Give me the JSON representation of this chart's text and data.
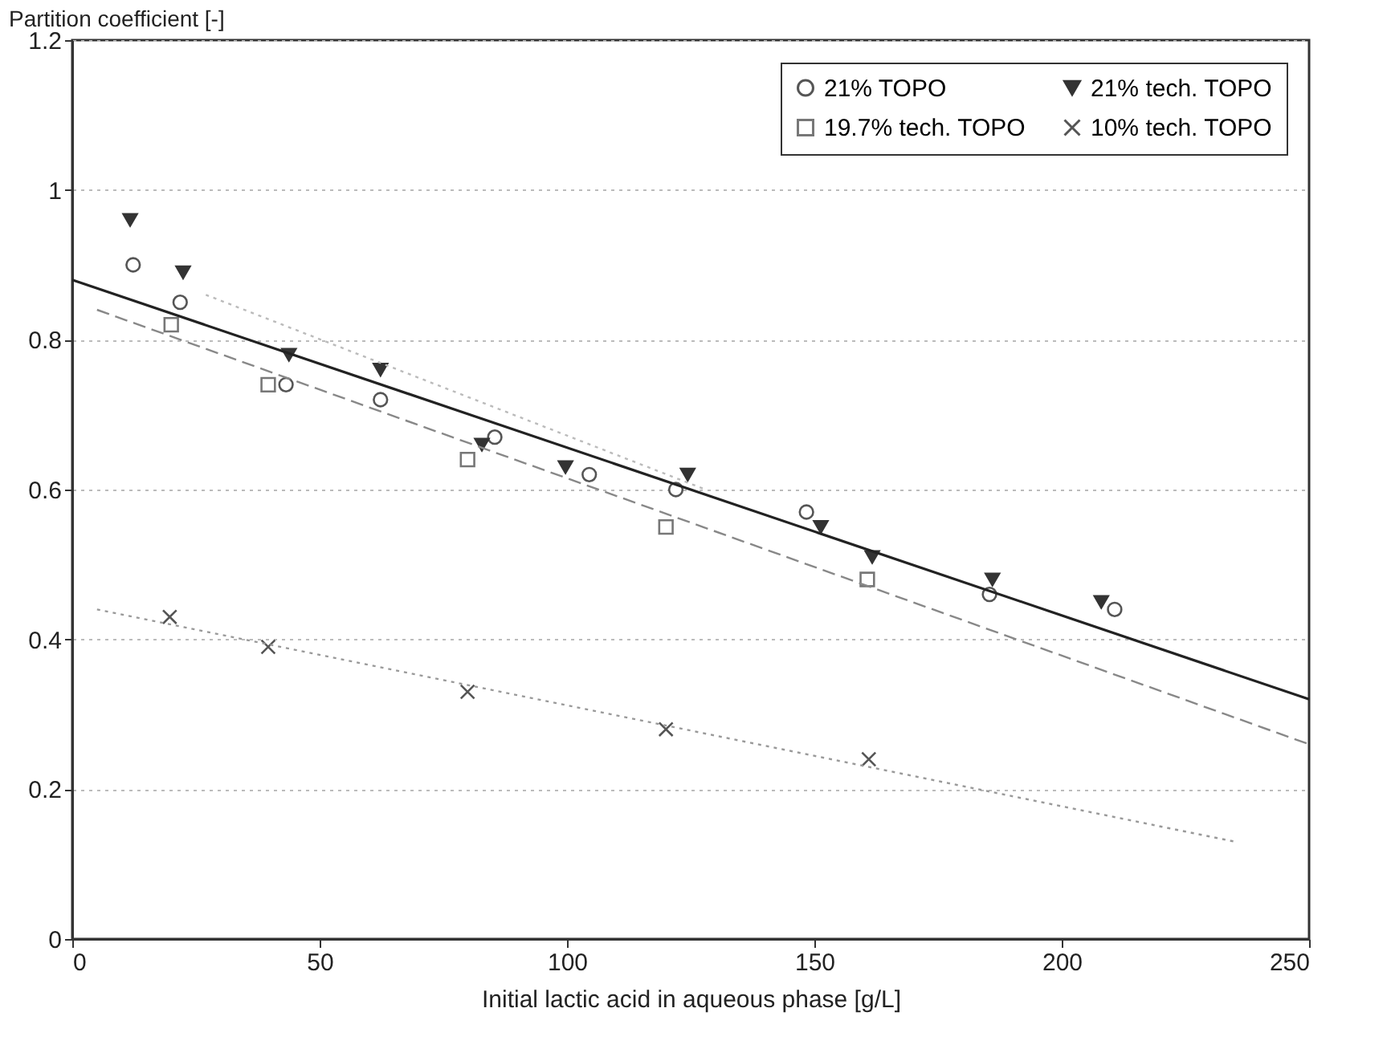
{
  "chart_data": {
    "type": "scatter",
    "xlabel": "Initial lactic acid in aqueous phase [g/L]",
    "ylabel": "Partition coefficient [-]",
    "xlim": [
      0,
      250
    ],
    "xticks": [
      0,
      50,
      100,
      150,
      200,
      250
    ],
    "ylim": [
      0,
      1.2
    ],
    "yticks": [
      0,
      0.2,
      0.4,
      0.6,
      0.8,
      1,
      1.2
    ],
    "grid": "y",
    "legend": "top right",
    "series": [
      {
        "name": "21% TOPO",
        "marker": "circle",
        "color": "#555555",
        "x": [
          12.3,
          21.8,
          43.2,
          62.3,
          85.4,
          104.5,
          122,
          148.4,
          185.4,
          210.7
        ],
        "values": [
          0.9,
          0.85,
          0.74,
          0.72,
          0.67,
          0.62,
          0.6,
          0.57,
          0.46,
          0.44
        ]
      },
      {
        "name": "21% tech. TOPO",
        "marker": "triangle",
        "color": "#333333",
        "x": [
          11.7,
          22.4,
          43.8,
          62.3,
          82.8,
          99.7,
          124.4,
          151.3,
          161.7,
          186,
          208
        ],
        "values": [
          0.96,
          0.89,
          0.78,
          0.76,
          0.66,
          0.63,
          0.62,
          0.55,
          0.51,
          0.48,
          0.45
        ]
      },
      {
        "name": "19.7% tech. TOPO",
        "marker": "square",
        "color": "#777777",
        "x": [
          20,
          39.6,
          79.9,
          120,
          160.7
        ],
        "values": [
          0.82,
          0.74,
          0.64,
          0.55,
          0.48
        ]
      },
      {
        "name": "10% tech. TOPO",
        "marker": "cross",
        "color": "#555555",
        "x": [
          19.7,
          39.6,
          79.9,
          120,
          161
        ],
        "values": [
          0.43,
          0.39,
          0.33,
          0.28,
          0.24
        ]
      },
      {
        "type": "line",
        "color": "#222222",
        "line_style": "solid",
        "x": [
          0,
          250
        ],
        "values": [
          0.88,
          0.32
        ]
      },
      {
        "type": "line",
        "color": "#888888",
        "line_style": "dashed",
        "x": [
          5,
          250
        ],
        "values": [
          0.84,
          0.26
        ]
      },
      {
        "type": "line",
        "color": "#999999",
        "line_style": "dotted",
        "x": [
          5,
          235
        ],
        "values": [
          0.44,
          0.13
        ]
      },
      {
        "type": "line",
        "color": "#bbbbbb",
        "line_style": "dotted",
        "x": [
          27,
          128
        ],
        "values": [
          0.86,
          0.6
        ]
      }
    ]
  }
}
